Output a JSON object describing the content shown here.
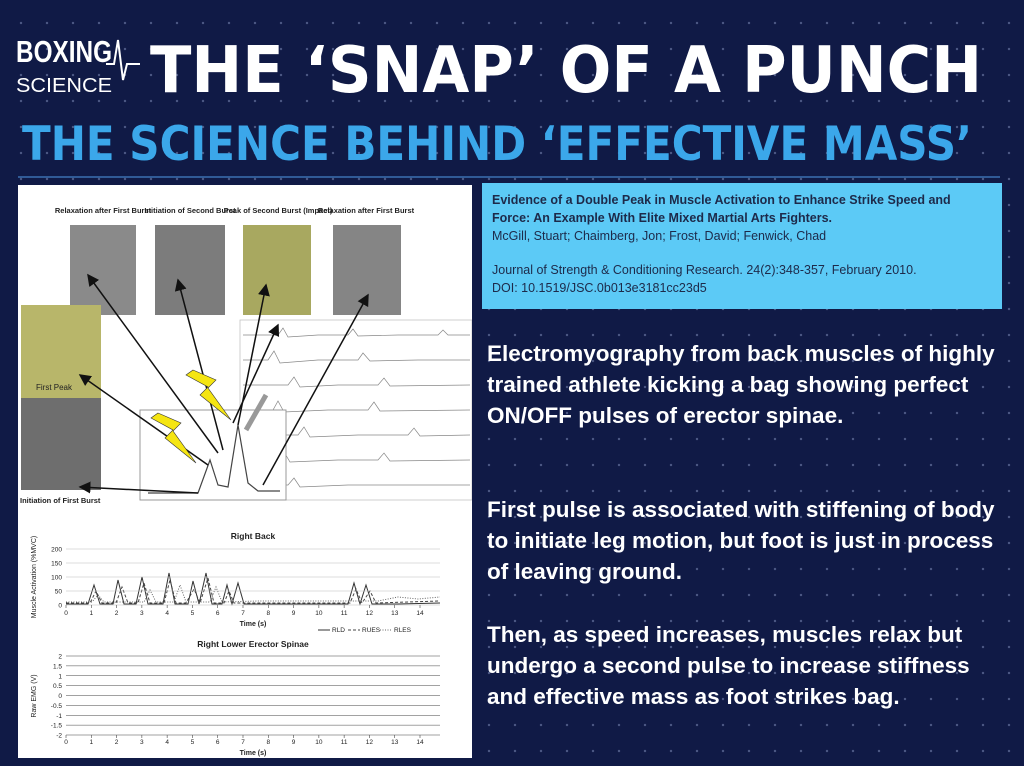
{
  "logo": {
    "line1": "BOXING",
    "line2": "SCIENCE"
  },
  "header": {
    "title": "THE ‘SNAP’ OF A PUNCH",
    "subtitle": "THE SCIENCE BEHIND ‘EFFECTIVE MASS’"
  },
  "reference": {
    "title": "Evidence of a Double Peak in Muscle Activation to Enhance Strike Speed and Force: An Example With Elite Mixed Martial Arts Fighters.",
    "authors": "McGill, Stuart; Chaimberg, Jon; Frost, David; Fenwick, Chad",
    "journal": "Journal of Strength & Conditioning Research. 24(2):348-357, February 2010.",
    "doi": "DOI: 10.1519/JSC.0b013e3181cc23d5"
  },
  "paragraphs": [
    "Electromyography from back muscles of highly trained athlete kicking a bag showing perfect ON/OFF pulses of erector spinae.",
    "First pulse is associated with stiffening of body to initiate leg motion, but foot is just in process of leaving ground.",
    "Then, as speed increases, muscles relax but undergo a second pulse to increase stiffness and effective mass as foot strikes bag."
  ],
  "figure": {
    "photo_captions": [
      "Relaxation after First Burst",
      "Initiation of Second Burst",
      "Peak of Second Burst (Impact)",
      "Relaxation after First Burst"
    ],
    "first_peak": "First Peak",
    "first_burst": "Initiation of First Burst",
    "charts": [
      {
        "title": "Right Back",
        "ylabel": "Muscle Activation (%MVC)",
        "xlabel": "Time (s)",
        "yticks": [
          0,
          50,
          100,
          150,
          200
        ],
        "xticks": [
          0,
          1,
          2,
          3,
          4,
          5,
          6,
          7,
          8,
          9,
          10,
          11,
          12,
          13,
          14
        ],
        "legend": [
          "RLD",
          "RUES",
          "RLES"
        ]
      },
      {
        "title": "Right Lower Erector Spinae",
        "ylabel": "Raw EMG (V)",
        "xlabel": "Time (s)",
        "yticks": [
          -2,
          -1.5,
          -1,
          -0.5,
          0,
          0.5,
          1,
          1.5,
          2
        ],
        "xticks": [
          0,
          1,
          2,
          3,
          4,
          5,
          6,
          7,
          8,
          9,
          10,
          11,
          12,
          13,
          14
        ]
      }
    ]
  }
}
